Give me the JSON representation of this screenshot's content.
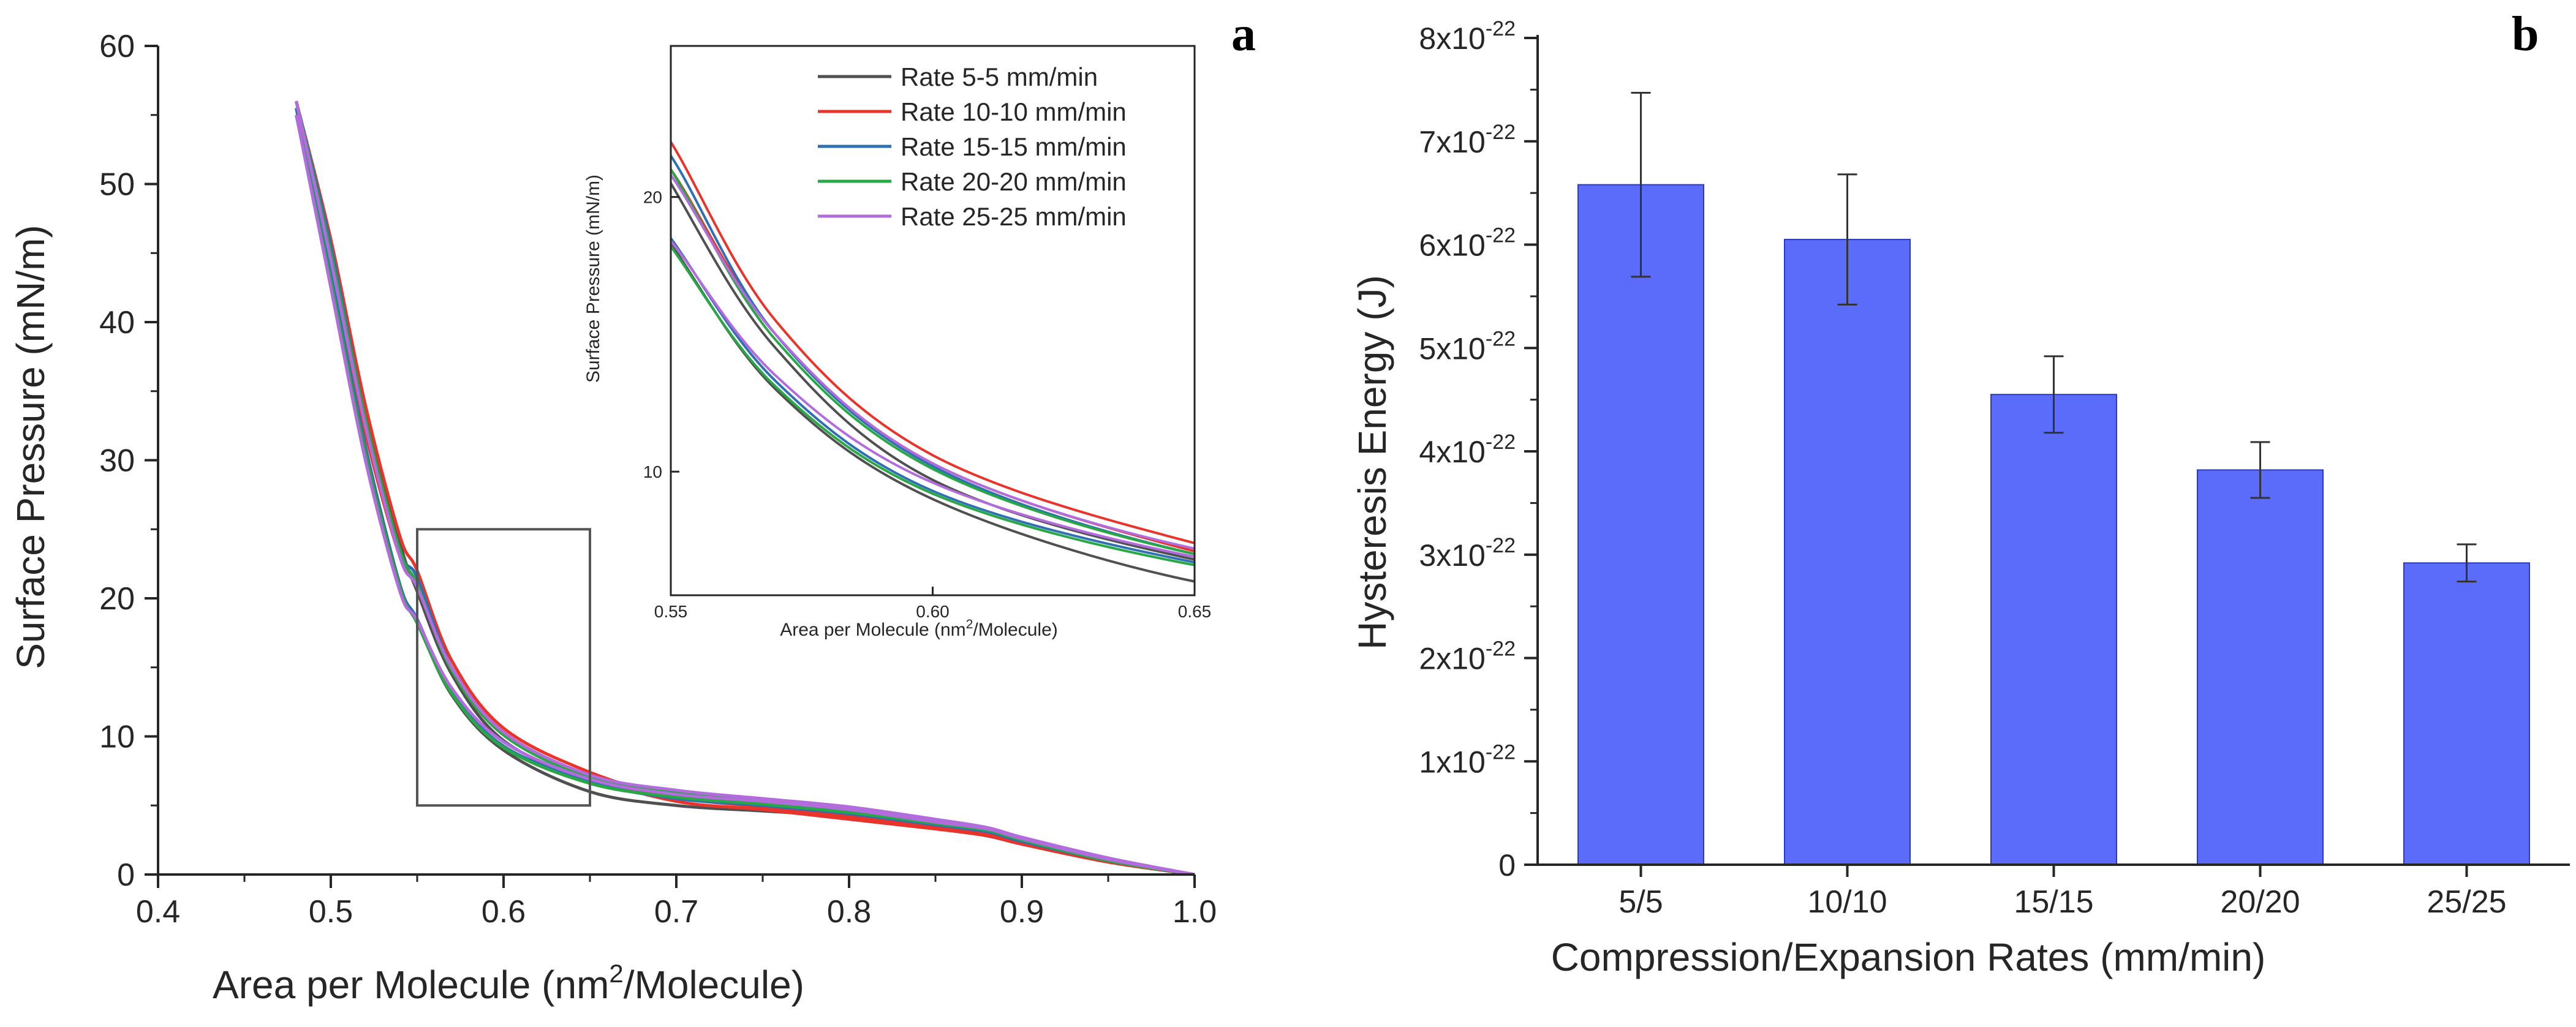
{
  "colors": {
    "bar": "#5b6cfb",
    "axis": "#262626",
    "series": [
      "#505050",
      "#e8342a",
      "#2f6fb3",
      "#27a844",
      "#b36cdc"
    ]
  },
  "chart_data": [
    {
      "panel": "a",
      "type": "line",
      "xlabel_pre": "Area per Molecule (nm",
      "xlabel_sup": "2",
      "xlabel_post": "/Molecule)",
      "ylabel": "Surface Pressure (mN/m)",
      "xlim": [
        0.4,
        1.0
      ],
      "ylim": [
        0,
        60
      ],
      "xticks": [
        "0.4",
        "0.5",
        "0.6",
        "0.7",
        "0.8",
        "0.9",
        "1.0"
      ],
      "yticks": [
        "0",
        "10",
        "20",
        "30",
        "40",
        "50",
        "60"
      ],
      "zoom_box": {
        "x": [
          0.55,
          0.65
        ],
        "y": [
          5,
          25
        ]
      },
      "series": [
        {
          "name": "Rate 5-5 mm/min",
          "compression": [
            [
              0.48,
              56
            ],
            [
              0.5,
              45
            ],
            [
              0.52,
              33.5
            ],
            [
              0.54,
              24
            ],
            [
              0.55,
              20.5
            ],
            [
              0.57,
              14.5
            ],
            [
              0.6,
              9.7
            ],
            [
              0.65,
              6.8
            ],
            [
              0.7,
              5.6
            ],
            [
              0.75,
              5.0
            ],
            [
              0.8,
              4.4
            ],
            [
              0.85,
              3.6
            ],
            [
              0.88,
              3.0
            ],
            [
              0.9,
              2.3
            ],
            [
              0.95,
              1.0
            ],
            [
              1.0,
              0
            ]
          ],
          "expansion": [
            [
              0.48,
              55.5
            ],
            [
              0.5,
              43
            ],
            [
              0.52,
              31
            ],
            [
              0.54,
              21
            ],
            [
              0.55,
              18.3
            ],
            [
              0.57,
              13
            ],
            [
              0.6,
              9.0
            ],
            [
              0.65,
              6.0
            ],
            [
              0.7,
              5.0
            ],
            [
              0.75,
              4.6
            ],
            [
              0.8,
              4.2
            ],
            [
              0.85,
              3.4
            ],
            [
              0.88,
              2.8
            ],
            [
              0.9,
              2.2
            ],
            [
              0.95,
              0.9
            ],
            [
              1.0,
              0
            ]
          ]
        },
        {
          "name": "Rate 10-10 mm/min",
          "compression": [
            [
              0.48,
              56
            ],
            [
              0.5,
              46
            ],
            [
              0.52,
              34
            ],
            [
              0.54,
              24.5
            ],
            [
              0.55,
              22
            ],
            [
              0.57,
              15.5
            ],
            [
              0.6,
              10.6
            ],
            [
              0.65,
              7.4
            ],
            [
              0.7,
              5.6
            ],
            [
              0.75,
              4.9
            ],
            [
              0.8,
              4.2
            ],
            [
              0.85,
              3.4
            ],
            [
              0.88,
              2.9
            ],
            [
              0.9,
              2.3
            ],
            [
              0.95,
              1.0
            ],
            [
              1.0,
              0
            ]
          ],
          "expansion": [
            [
              0.48,
              55
            ],
            [
              0.5,
              44
            ],
            [
              0.52,
              32
            ],
            [
              0.54,
              23
            ],
            [
              0.55,
              21
            ],
            [
              0.57,
              15
            ],
            [
              0.6,
              10.3
            ],
            [
              0.65,
              7.1
            ],
            [
              0.7,
              5.3
            ],
            [
              0.75,
              4.7
            ],
            [
              0.8,
              4.0
            ],
            [
              0.85,
              3.3
            ],
            [
              0.88,
              2.8
            ],
            [
              0.9,
              2.2
            ],
            [
              0.95,
              0.9
            ],
            [
              1.0,
              0
            ]
          ]
        },
        {
          "name": "Rate 15-15 mm/min",
          "compression": [
            [
              0.48,
              56
            ],
            [
              0.5,
              45.5
            ],
            [
              0.52,
              33
            ],
            [
              0.54,
              23.5
            ],
            [
              0.55,
              21.5
            ],
            [
              0.57,
              15
            ],
            [
              0.6,
              10.2
            ],
            [
              0.65,
              7.0
            ],
            [
              0.7,
              5.8
            ],
            [
              0.75,
              5.2
            ],
            [
              0.8,
              4.6
            ],
            [
              0.85,
              3.8
            ],
            [
              0.88,
              3.2
            ],
            [
              0.9,
              2.5
            ],
            [
              0.95,
              1.1
            ],
            [
              1.0,
              0
            ]
          ],
          "expansion": [
            [
              0.48,
              55.5
            ],
            [
              0.5,
              43.5
            ],
            [
              0.52,
              31
            ],
            [
              0.54,
              21
            ],
            [
              0.55,
              18.5
            ],
            [
              0.57,
              13.3
            ],
            [
              0.6,
              9.3
            ],
            [
              0.65,
              6.7
            ],
            [
              0.7,
              5.5
            ],
            [
              0.75,
              5.0
            ],
            [
              0.8,
              4.4
            ],
            [
              0.85,
              3.6
            ],
            [
              0.88,
              3.1
            ],
            [
              0.9,
              2.4
            ],
            [
              0.95,
              1.0
            ],
            [
              1.0,
              0
            ]
          ]
        },
        {
          "name": "Rate 20-20 mm/min",
          "compression": [
            [
              0.48,
              56
            ],
            [
              0.5,
              45
            ],
            [
              0.52,
              33
            ],
            [
              0.54,
              23.5
            ],
            [
              0.55,
              21
            ],
            [
              0.57,
              14.8
            ],
            [
              0.6,
              10.1
            ],
            [
              0.65,
              7.0
            ],
            [
              0.7,
              5.9
            ],
            [
              0.75,
              5.3
            ],
            [
              0.8,
              4.7
            ],
            [
              0.85,
              3.9
            ],
            [
              0.88,
              3.3
            ],
            [
              0.9,
              2.6
            ],
            [
              0.95,
              1.1
            ],
            [
              1.0,
              0
            ]
          ],
          "expansion": [
            [
              0.48,
              55
            ],
            [
              0.5,
              43
            ],
            [
              0.52,
              30.5
            ],
            [
              0.54,
              20.8
            ],
            [
              0.55,
              18.2
            ],
            [
              0.57,
              13.1
            ],
            [
              0.6,
              9.2
            ],
            [
              0.65,
              6.6
            ],
            [
              0.7,
              5.6
            ],
            [
              0.75,
              5.1
            ],
            [
              0.8,
              4.5
            ],
            [
              0.85,
              3.7
            ],
            [
              0.88,
              3.2
            ],
            [
              0.9,
              2.5
            ],
            [
              0.95,
              1.0
            ],
            [
              1.0,
              0
            ]
          ]
        },
        {
          "name": "Rate 25-25 mm/min",
          "compression": [
            [
              0.48,
              56
            ],
            [
              0.5,
              44.5
            ],
            [
              0.52,
              32.5
            ],
            [
              0.54,
              23
            ],
            [
              0.55,
              20.8
            ],
            [
              0.57,
              15
            ],
            [
              0.6,
              10.3
            ],
            [
              0.65,
              7.2
            ],
            [
              0.7,
              6.1
            ],
            [
              0.75,
              5.5
            ],
            [
              0.8,
              4.9
            ],
            [
              0.85,
              4.0
            ],
            [
              0.88,
              3.4
            ],
            [
              0.9,
              2.7
            ],
            [
              0.95,
              1.2
            ],
            [
              1.0,
              0
            ]
          ],
          "expansion": [
            [
              0.48,
              55
            ],
            [
              0.5,
              42.5
            ],
            [
              0.52,
              30
            ],
            [
              0.54,
              20.5
            ],
            [
              0.55,
              18.4
            ],
            [
              0.57,
              13.5
            ],
            [
              0.6,
              9.6
            ],
            [
              0.65,
              6.9
            ],
            [
              0.7,
              5.8
            ],
            [
              0.75,
              5.3
            ],
            [
              0.8,
              4.7
            ],
            [
              0.85,
              3.8
            ],
            [
              0.88,
              3.3
            ],
            [
              0.9,
              2.6
            ],
            [
              0.95,
              1.1
            ],
            [
              1.0,
              0
            ]
          ]
        }
      ],
      "inset": {
        "xlabel_pre": "Area per Molecule (nm",
        "xlabel_sup": "2",
        "xlabel_post": "/Molecule)",
        "ylabel": "Surface Pressure (mN/m)",
        "xlim": [
          0.55,
          0.65
        ],
        "ylim": [
          5.5,
          25.5
        ],
        "xticks": [
          "0.55",
          "0.60",
          "0.65"
        ],
        "yticks": [
          "10",
          "20"
        ]
      }
    },
    {
      "panel": "b",
      "type": "bar",
      "xlabel": "Compression/Expansion Rates (mm/min)",
      "ylabel": "Hysteresis Energy (J)",
      "categories": [
        "5/5",
        "10/10",
        "15/15",
        "20/20",
        "25/25"
      ],
      "values": [
        6.58,
        6.05,
        4.55,
        3.82,
        2.92
      ],
      "errors": [
        0.89,
        0.63,
        0.37,
        0.27,
        0.18
      ],
      "value_unit": "x10^-22 J",
      "ylim": [
        0,
        8
      ],
      "yticks": [
        {
          "base": "0",
          "exp": ""
        },
        {
          "base": "1x10",
          "exp": "-22"
        },
        {
          "base": "2x10",
          "exp": "-22"
        },
        {
          "base": "3x10",
          "exp": "-22"
        },
        {
          "base": "4x10",
          "exp": "-22"
        },
        {
          "base": "5x10",
          "exp": "-22"
        },
        {
          "base": "6x10",
          "exp": "-22"
        },
        {
          "base": "7x10",
          "exp": "-22"
        },
        {
          "base": "8x10",
          "exp": "-22"
        }
      ]
    }
  ]
}
